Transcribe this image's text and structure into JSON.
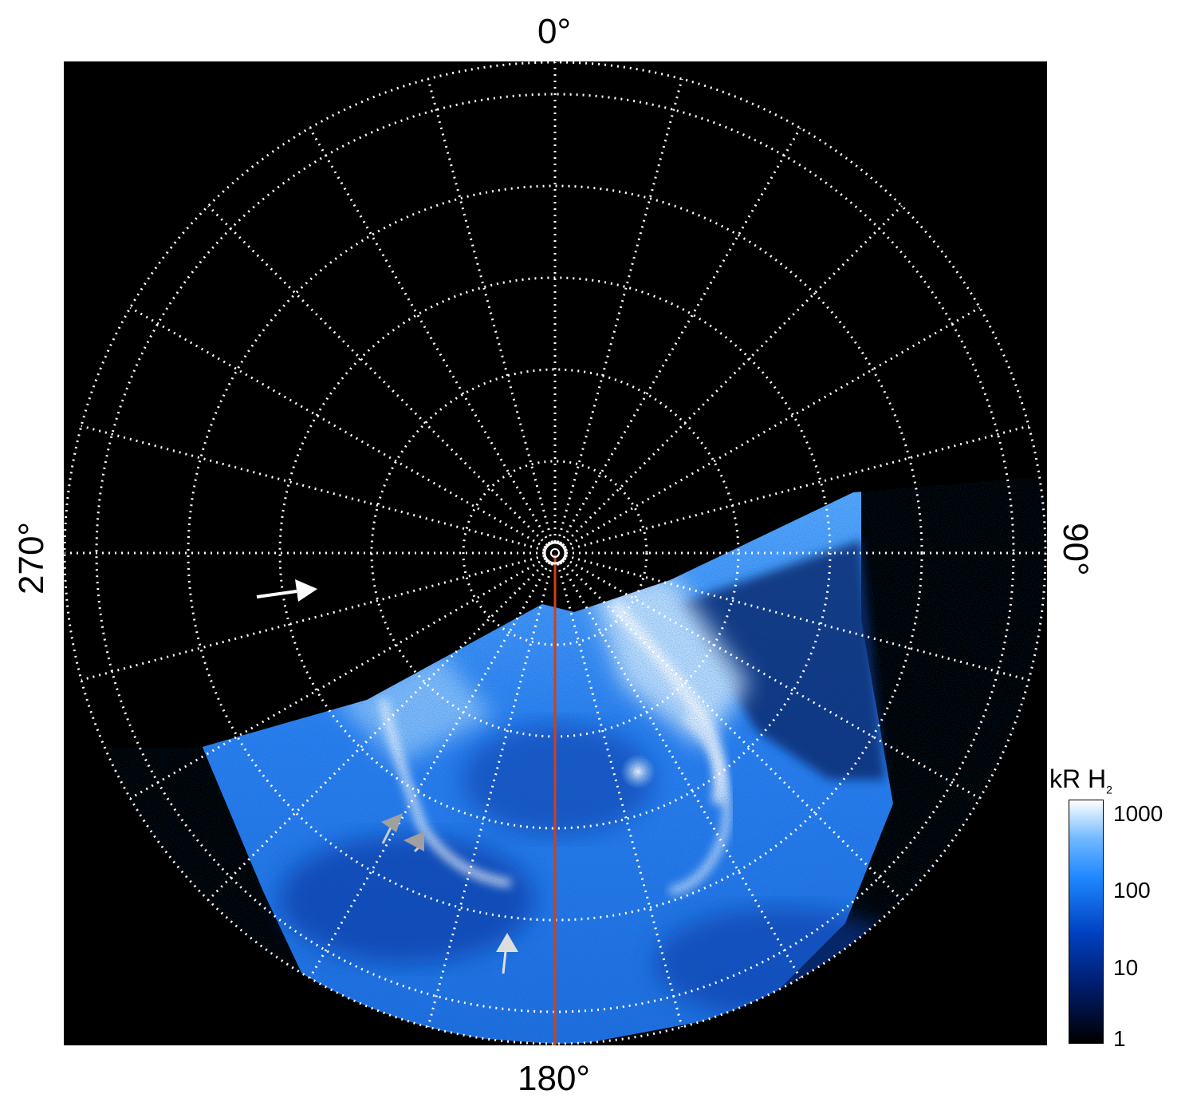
{
  "figure": {
    "labels": {
      "top": "0°",
      "bottom": "180°",
      "left": "270°",
      "right": "90°"
    },
    "colorbar": {
      "title_main": "kR H",
      "title_sub": "2",
      "ticks": [
        "1000",
        "100",
        "10",
        "1"
      ],
      "scale": "log"
    },
    "colors": {
      "background": "#000000",
      "grid": "#ffffff",
      "meridian_line": "#d0401a",
      "aurora_low": "#0a2a8a",
      "aurora_mid": "#1e86ff",
      "aurora_high": "#ffffff",
      "arrow_white": "#ffffff",
      "arrow_gray": "#a0a0a0"
    }
  }
}
